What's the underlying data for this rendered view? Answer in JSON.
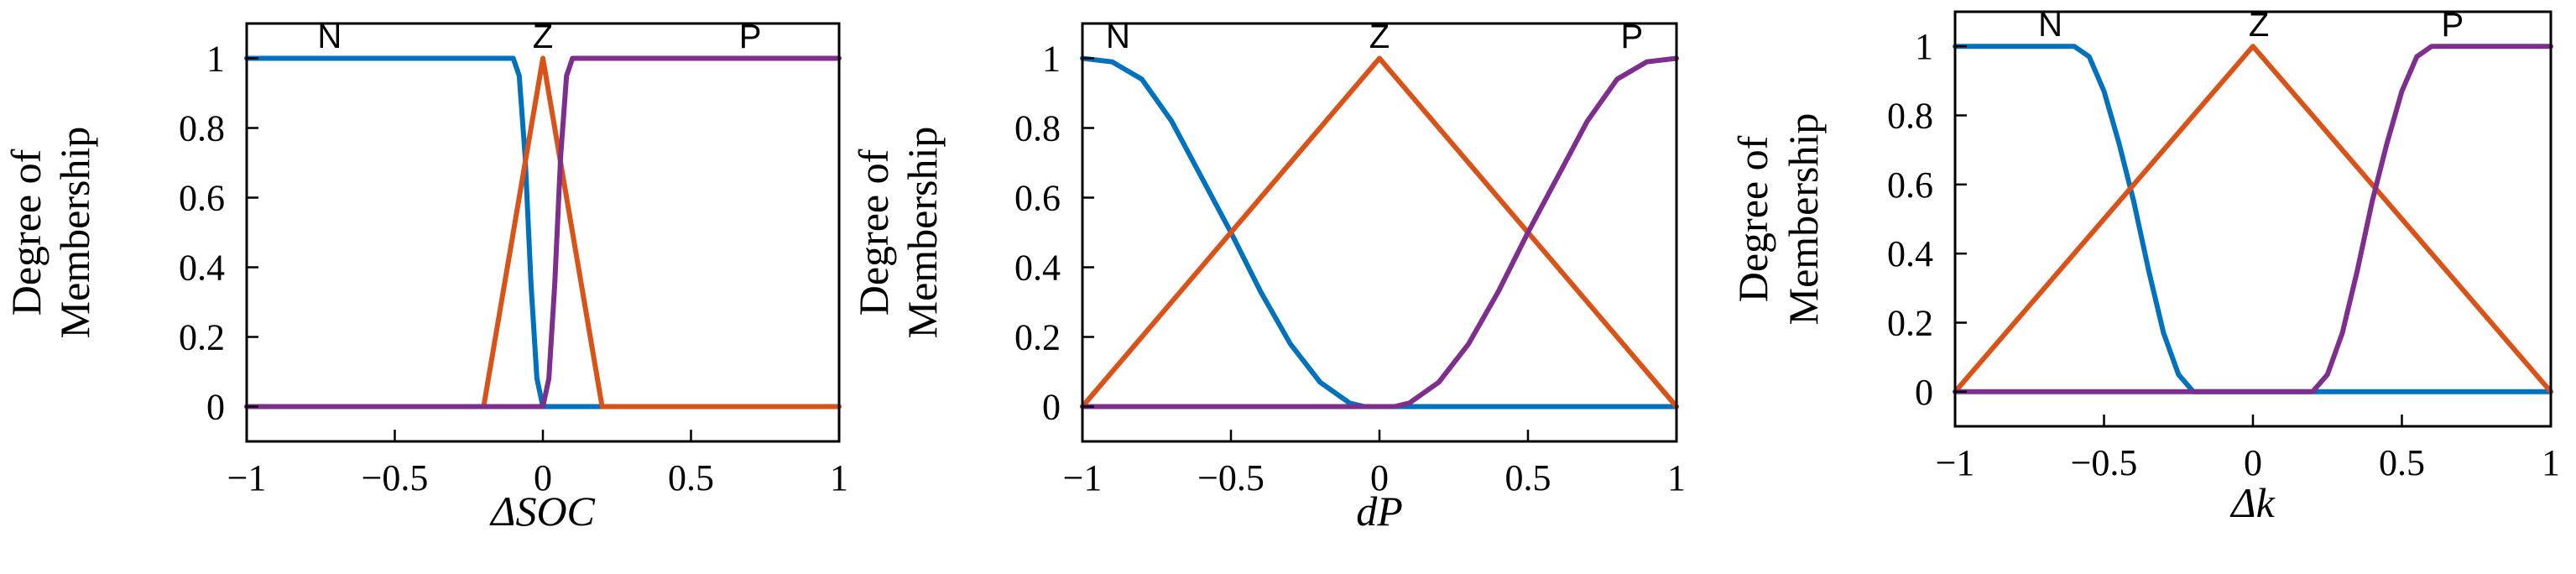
{
  "chart_data": [
    {
      "type": "line",
      "xlabel": "ΔSOC",
      "ylabel": [
        "Degree of",
        "Membership"
      ],
      "xlim": [
        -1,
        1
      ],
      "ylim": [
        -0.1,
        1.1
      ],
      "xticks": [
        "-1",
        "-0.5",
        "0",
        "0.5",
        "1"
      ],
      "yticks": [
        "0",
        "0.2",
        "0.4",
        "0.6",
        "0.8",
        "1"
      ],
      "series": [
        {
          "name": "N",
          "color": "#0072BD",
          "x": [
            -1,
            -0.1,
            -0.08,
            -0.06,
            -0.04,
            -0.02,
            0,
            1
          ],
          "y": [
            1,
            1,
            0.95,
            0.72,
            0.35,
            0.08,
            0,
            0
          ]
        },
        {
          "name": "Z",
          "color": "#D95319",
          "x": [
            -1,
            -0.2,
            0,
            0.2,
            1
          ],
          "y": [
            0,
            0,
            1,
            0,
            0
          ]
        },
        {
          "name": "P",
          "color": "#7E2F8E",
          "x": [
            -1,
            0,
            0.02,
            0.04,
            0.06,
            0.08,
            0.1,
            1
          ],
          "y": [
            0,
            0,
            0.08,
            0.35,
            0.72,
            0.95,
            1,
            1
          ]
        }
      ],
      "mf_labels": [
        {
          "text": "N",
          "x": -0.72,
          "y": 1.03
        },
        {
          "text": "Z",
          "x": 0.0,
          "y": 1.03
        },
        {
          "text": "P",
          "x": 0.7,
          "y": 1.03
        }
      ]
    },
    {
      "type": "line",
      "xlabel": "dP",
      "ylabel": [
        "Degree of",
        "Membership"
      ],
      "xlim": [
        -1,
        1
      ],
      "ylim": [
        -0.1,
        1.1
      ],
      "xticks": [
        "-1",
        "-0.5",
        "0",
        "0.5",
        "1"
      ],
      "yticks": [
        "0",
        "0.2",
        "0.4",
        "0.6",
        "0.8",
        "1"
      ],
      "series": [
        {
          "name": "N",
          "color": "#0072BD",
          "x": [
            -1,
            -0.9,
            -0.8,
            -0.7,
            -0.6,
            -0.5,
            -0.4,
            -0.3,
            -0.2,
            -0.1,
            -0.05,
            1
          ],
          "y": [
            1,
            0.99,
            0.94,
            0.82,
            0.66,
            0.5,
            0.33,
            0.18,
            0.07,
            0.01,
            0,
            0
          ]
        },
        {
          "name": "Z",
          "color": "#D95319",
          "x": [
            -1,
            0,
            1
          ],
          "y": [
            0,
            1,
            0
          ]
        },
        {
          "name": "P",
          "color": "#7E2F8E",
          "x": [
            -1,
            0.05,
            0.1,
            0.2,
            0.3,
            0.4,
            0.5,
            0.6,
            0.7,
            0.8,
            0.9,
            1
          ],
          "y": [
            0,
            0,
            0.01,
            0.07,
            0.18,
            0.33,
            0.5,
            0.66,
            0.82,
            0.94,
            0.99,
            1
          ]
        }
      ],
      "mf_labels": [
        {
          "text": "N",
          "x": -0.88,
          "y": 1.03
        },
        {
          "text": "Z",
          "x": 0.0,
          "y": 1.03
        },
        {
          "text": "P",
          "x": 0.85,
          "y": 1.03
        }
      ]
    },
    {
      "type": "line",
      "xlabel": "Δk",
      "ylabel": [
        "Degree of",
        "Membership"
      ],
      "xlim": [
        -1,
        1
      ],
      "ylim": [
        -0.1,
        1.1
      ],
      "xticks": [
        "-1",
        "-0.5",
        "0",
        "0.5",
        "1"
      ],
      "yticks": [
        "0",
        "0.2",
        "0.4",
        "0.6",
        "0.8",
        "1"
      ],
      "series": [
        {
          "name": "N",
          "color": "#0072BD",
          "x": [
            -1,
            -0.6,
            -0.55,
            -0.5,
            -0.45,
            -0.4,
            -0.35,
            -0.3,
            -0.25,
            -0.2,
            1
          ],
          "y": [
            1,
            1,
            0.97,
            0.87,
            0.72,
            0.55,
            0.35,
            0.17,
            0.05,
            0,
            0
          ]
        },
        {
          "name": "Z",
          "color": "#D95319",
          "x": [
            -1,
            0,
            1
          ],
          "y": [
            0,
            1,
            0
          ]
        },
        {
          "name": "P",
          "color": "#7E2F8E",
          "x": [
            -1,
            0.2,
            0.25,
            0.3,
            0.35,
            0.4,
            0.45,
            0.5,
            0.55,
            0.6,
            1
          ],
          "y": [
            0,
            0,
            0.05,
            0.17,
            0.35,
            0.55,
            0.72,
            0.87,
            0.97,
            1,
            1
          ]
        }
      ],
      "mf_labels": [
        {
          "text": "N",
          "x": -0.68,
          "y": 1.03
        },
        {
          "text": "Z",
          "x": 0.02,
          "y": 1.03
        },
        {
          "text": "P",
          "x": 0.67,
          "y": 1.03
        }
      ]
    }
  ]
}
